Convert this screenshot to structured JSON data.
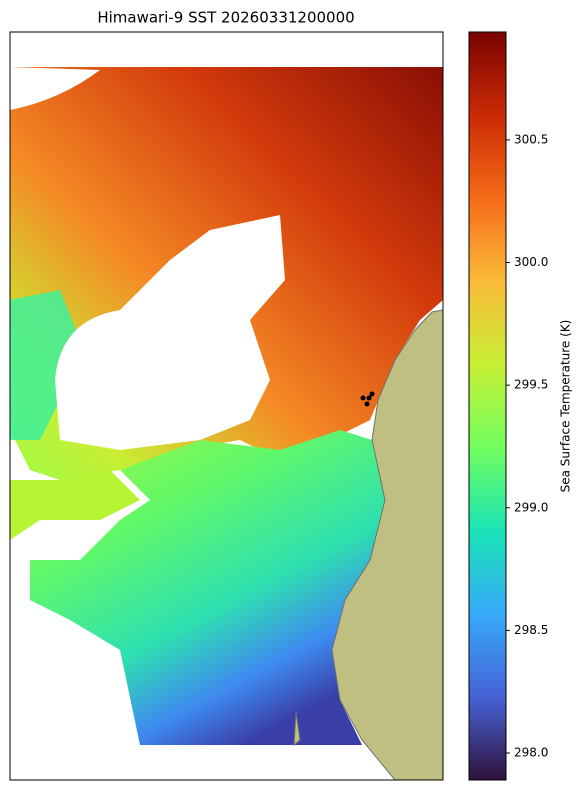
{
  "chart_data": {
    "type": "map",
    "title": "Himawari-9 SST 20260331200000",
    "colorbar_label": "Sea Surface Temperature (K)",
    "colormap": "turbo",
    "clim": [
      297.89,
      300.94
    ],
    "cticks": [
      {
        "value": 298.0,
        "label": "298.0"
      },
      298.5,
      {
        "value": 299.0,
        "label": "299.0"
      },
      299.5,
      {
        "value": 300.0,
        "label": "300.0"
      },
      300.5
    ]
  }
}
